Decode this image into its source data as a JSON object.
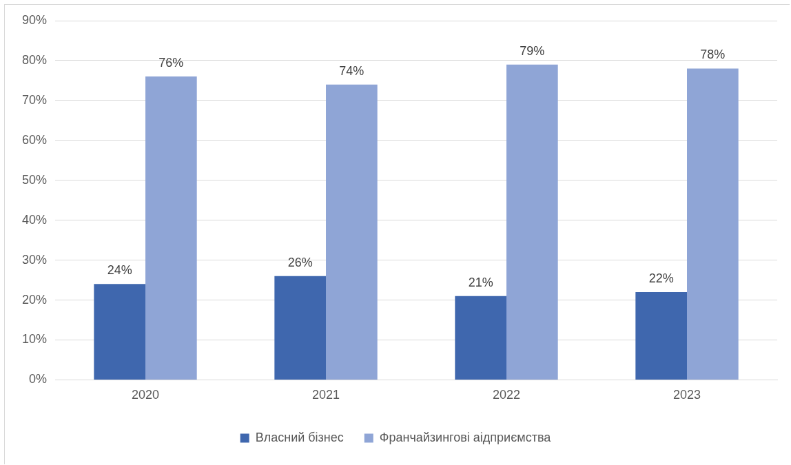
{
  "chart_data": {
    "type": "bar",
    "categories": [
      "2020",
      "2021",
      "2022",
      "2023"
    ],
    "series": [
      {
        "name": "Власний бізнес",
        "color": "#3f67ae",
        "values": [
          24,
          26,
          21,
          22
        ],
        "value_labels": [
          "24%",
          "26%",
          "21%",
          "22%"
        ]
      },
      {
        "name": "Франчайзингові аідприємства",
        "color": "#8fa5d6",
        "values": [
          76,
          74,
          79,
          78
        ],
        "value_labels": [
          "76%",
          "74%",
          "79%",
          "78%"
        ]
      }
    ],
    "ylim": [
      0,
      90
    ],
    "yticks": [
      {
        "value": 0,
        "label": "0%"
      },
      {
        "value": 10,
        "label": "10%"
      },
      {
        "value": 20,
        "label": "20%"
      },
      {
        "value": 30,
        "label": "30%"
      },
      {
        "value": 40,
        "label": "40%"
      },
      {
        "value": 50,
        "label": "50%"
      },
      {
        "value": 60,
        "label": "60%"
      },
      {
        "value": 70,
        "label": "70%"
      },
      {
        "value": 80,
        "label": "80%"
      },
      {
        "value": 90,
        "label": "90%"
      }
    ],
    "grid": "y",
    "legend": "bottom"
  }
}
